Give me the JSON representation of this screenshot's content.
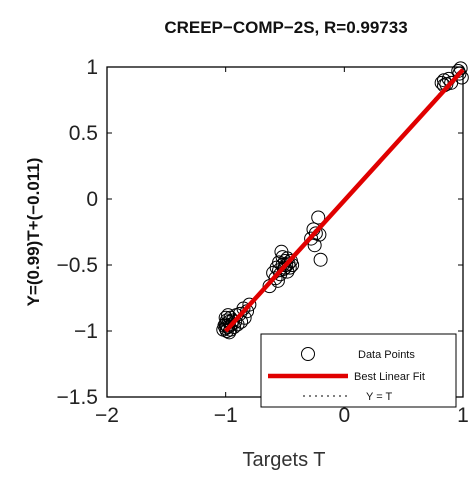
{
  "chart_data": {
    "type": "scatter",
    "title": "CREEP−COMP−2S, R=0.99733",
    "xlabel": "Targets T",
    "ylabel": "Y=(0.99)T+(−0.011)",
    "xlim": [
      -2,
      1
    ],
    "ylim": [
      -1.5,
      1
    ],
    "xticks": [
      -2,
      -1,
      0,
      1
    ],
    "xtick_labels": [
      "−2",
      "−1",
      "0",
      "1"
    ],
    "yticks": [
      -1.5,
      -1,
      -0.5,
      0,
      0.5,
      1
    ],
    "ytick_labels": [
      "−1.5",
      "−1",
      "−0.5",
      "0",
      "0.5",
      "1"
    ],
    "grid": false,
    "legend_position": "bottom-right",
    "legend": [
      {
        "label": "Data Points",
        "style": "circle-marker"
      },
      {
        "label": "Best Linear Fit",
        "style": "solid-red"
      },
      {
        "label": "Y = T",
        "style": "dotted-black"
      }
    ],
    "fit": {
      "slope": 0.99,
      "intercept": -0.011,
      "x": [
        -1,
        1
      ],
      "color": "#e00000"
    },
    "identity": {
      "x": [
        -1,
        1
      ]
    },
    "points": [
      {
        "x": -1.0,
        "y": -0.98
      },
      {
        "x": -1.0,
        "y": -0.95
      },
      {
        "x": -0.99,
        "y": -1.0
      },
      {
        "x": -0.98,
        "y": -0.97
      },
      {
        "x": -0.97,
        "y": -0.93
      },
      {
        "x": -1.01,
        "y": -0.96
      },
      {
        "x": -0.99,
        "y": -0.92
      },
      {
        "x": -0.96,
        "y": -0.99
      },
      {
        "x": -0.95,
        "y": -0.95
      },
      {
        "x": -1.0,
        "y": -0.9
      },
      {
        "x": -0.98,
        "y": -0.88
      },
      {
        "x": -0.96,
        "y": -0.9
      },
      {
        "x": -0.94,
        "y": -0.92
      },
      {
        "x": -0.97,
        "y": -1.01
      },
      {
        "x": -1.02,
        "y": -0.99
      },
      {
        "x": -0.93,
        "y": -0.97
      },
      {
        "x": -0.92,
        "y": -0.93
      },
      {
        "x": -0.99,
        "y": -0.96
      },
      {
        "x": -0.9,
        "y": -0.95
      },
      {
        "x": -0.91,
        "y": -0.88
      },
      {
        "x": -0.88,
        "y": -0.87
      },
      {
        "x": -0.85,
        "y": -0.83
      },
      {
        "x": -0.87,
        "y": -0.93
      },
      {
        "x": -0.82,
        "y": -0.85
      },
      {
        "x": -0.8,
        "y": -0.8
      },
      {
        "x": -0.84,
        "y": -0.9
      },
      {
        "x": -0.63,
        "y": -0.66
      },
      {
        "x": -0.6,
        "y": -0.56
      },
      {
        "x": -0.58,
        "y": -0.6
      },
      {
        "x": -0.57,
        "y": -0.52
      },
      {
        "x": -0.55,
        "y": -0.54
      },
      {
        "x": -0.55,
        "y": -0.48
      },
      {
        "x": -0.54,
        "y": -0.57
      },
      {
        "x": -0.52,
        "y": -0.5
      },
      {
        "x": -0.52,
        "y": -0.44
      },
      {
        "x": -0.51,
        "y": -0.53
      },
      {
        "x": -0.5,
        "y": -0.47
      },
      {
        "x": -0.5,
        "y": -0.52
      },
      {
        "x": -0.49,
        "y": -0.5
      },
      {
        "x": -0.48,
        "y": -0.55
      },
      {
        "x": -0.48,
        "y": -0.45
      },
      {
        "x": -0.47,
        "y": -0.49
      },
      {
        "x": -0.46,
        "y": -0.52
      },
      {
        "x": -0.45,
        "y": -0.47
      },
      {
        "x": -0.53,
        "y": -0.4
      },
      {
        "x": -0.56,
        "y": -0.62
      },
      {
        "x": -0.44,
        "y": -0.5
      },
      {
        "x": -0.28,
        "y": -0.3
      },
      {
        "x": -0.26,
        "y": -0.23
      },
      {
        "x": -0.25,
        "y": -0.35
      },
      {
        "x": -0.24,
        "y": -0.26
      },
      {
        "x": -0.22,
        "y": -0.14
      },
      {
        "x": -0.21,
        "y": -0.27
      },
      {
        "x": -0.2,
        "y": -0.46
      },
      {
        "x": 0.82,
        "y": 0.88
      },
      {
        "x": 0.84,
        "y": 0.9
      },
      {
        "x": 0.86,
        "y": 0.87
      },
      {
        "x": 0.88,
        "y": 0.91
      },
      {
        "x": 0.9,
        "y": 0.88
      },
      {
        "x": 0.84,
        "y": 0.86
      },
      {
        "x": 0.97,
        "y": 0.95
      },
      {
        "x": 0.98,
        "y": 0.99
      },
      {
        "x": 0.99,
        "y": 0.92
      },
      {
        "x": 0.96,
        "y": 0.97
      }
    ]
  }
}
